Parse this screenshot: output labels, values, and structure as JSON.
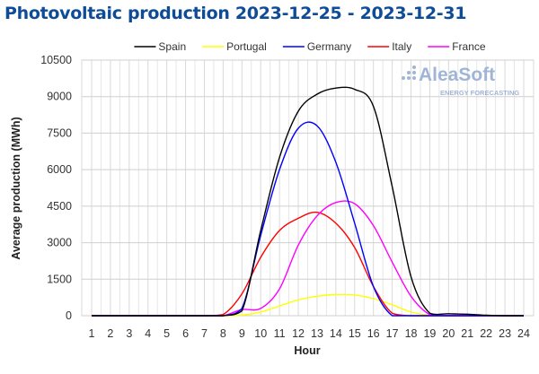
{
  "chart_data": {
    "type": "line",
    "title": "Photovoltaic production 2023-12-25 - 2023-12-31",
    "xlabel": "Hour",
    "ylabel": "Average production (MWh)",
    "x": [
      1,
      2,
      3,
      4,
      5,
      6,
      7,
      8,
      9,
      10,
      11,
      12,
      13,
      14,
      15,
      16,
      17,
      18,
      19,
      20,
      21,
      22,
      23,
      24
    ],
    "ylim": [
      0,
      10500
    ],
    "yticks": [
      0,
      1500,
      3000,
      4500,
      6000,
      7500,
      9000,
      10500
    ],
    "grid": true,
    "legend_position": "top",
    "watermark": {
      "brand": "AleaSoft",
      "tagline": "ENERGY FORECASTING"
    },
    "series": [
      {
        "name": "Spain",
        "color": "#000000",
        "values": [
          0,
          0,
          0,
          0,
          0,
          0,
          0,
          0,
          200,
          3500,
          6500,
          8400,
          9100,
          9350,
          9300,
          8600,
          5300,
          1600,
          100,
          80,
          60,
          20,
          0,
          0
        ]
      },
      {
        "name": "Portugal",
        "color": "#ffff00",
        "values": [
          0,
          0,
          0,
          0,
          0,
          0,
          0,
          0,
          20,
          150,
          400,
          650,
          800,
          870,
          850,
          700,
          450,
          150,
          20,
          0,
          0,
          0,
          0,
          0
        ]
      },
      {
        "name": "Germany",
        "color": "#0000ff",
        "values": [
          0,
          0,
          0,
          0,
          0,
          0,
          0,
          0,
          300,
          3300,
          6000,
          7700,
          7800,
          6300,
          3800,
          1200,
          0,
          0,
          0,
          0,
          0,
          0,
          0,
          0
        ]
      },
      {
        "name": "Italy",
        "color": "#ff0000",
        "values": [
          0,
          0,
          0,
          0,
          0,
          0,
          0,
          50,
          900,
          2400,
          3500,
          4000,
          4250,
          3800,
          2800,
          1200,
          100,
          0,
          0,
          0,
          0,
          0,
          0,
          0
        ]
      },
      {
        "name": "France",
        "color": "#ff00ff",
        "values": [
          0,
          0,
          0,
          0,
          0,
          0,
          0,
          0,
          250,
          300,
          1100,
          2900,
          4100,
          4650,
          4600,
          3700,
          2200,
          800,
          50,
          0,
          0,
          0,
          0,
          0
        ]
      }
    ]
  }
}
